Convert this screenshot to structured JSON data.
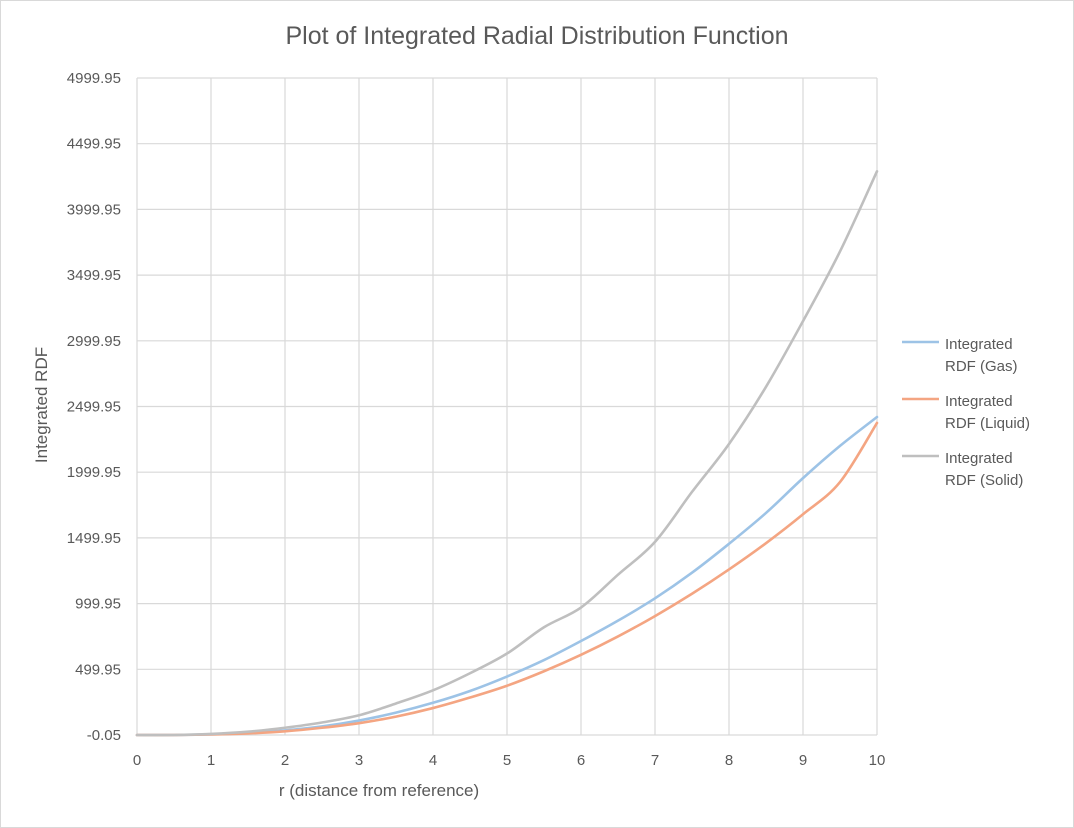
{
  "chart_data": {
    "type": "line",
    "title": "Plot of Integrated Radial Distribution Function",
    "xlabel": "r (distance from reference)",
    "ylabel": "Integrated RDF",
    "xlim": [
      0,
      10
    ],
    "ylim": [
      -0.05,
      4999.95
    ],
    "x_ticks": [
      "0",
      "1",
      "2",
      "3",
      "4",
      "5",
      "6",
      "7",
      "8",
      "9",
      "10"
    ],
    "y_ticks": [
      "-0.05",
      "499.95",
      "999.95",
      "1499.95",
      "1999.95",
      "2499.95",
      "2999.95",
      "3499.95",
      "3999.95",
      "4499.95",
      "4999.95"
    ],
    "grid": true,
    "legend_position": "right",
    "x": [
      0,
      0.5,
      1,
      1.5,
      2,
      2.5,
      3,
      3.5,
      4,
      4.5,
      5,
      5.5,
      6,
      6.5,
      7,
      7.5,
      8,
      8.5,
      9,
      9.5,
      10
    ],
    "series": [
      {
        "name": "Integrated RDF (Gas)",
        "color": "#9dc3e6",
        "values": [
          0,
          0,
          5,
          15,
          35,
          65,
          110,
          170,
          245,
          335,
          445,
          570,
          715,
          870,
          1040,
          1235,
          1455,
          1690,
          1955,
          2200,
          2420
        ]
      },
      {
        "name": "Integrated RDF (Liquid)",
        "color": "#f4a582",
        "values": [
          0,
          0,
          4,
          12,
          28,
          55,
          90,
          140,
          205,
          285,
          375,
          485,
          610,
          750,
          905,
          1075,
          1260,
          1460,
          1680,
          1925,
          2375
        ]
      },
      {
        "name": "Integrated RDF (Solid)",
        "color": "#bfbfbf",
        "values": [
          0,
          0,
          8,
          25,
          55,
          95,
          150,
          240,
          340,
          470,
          620,
          820,
          970,
          1220,
          1470,
          1850,
          2215,
          2650,
          3150,
          3680,
          4290
        ]
      }
    ]
  }
}
